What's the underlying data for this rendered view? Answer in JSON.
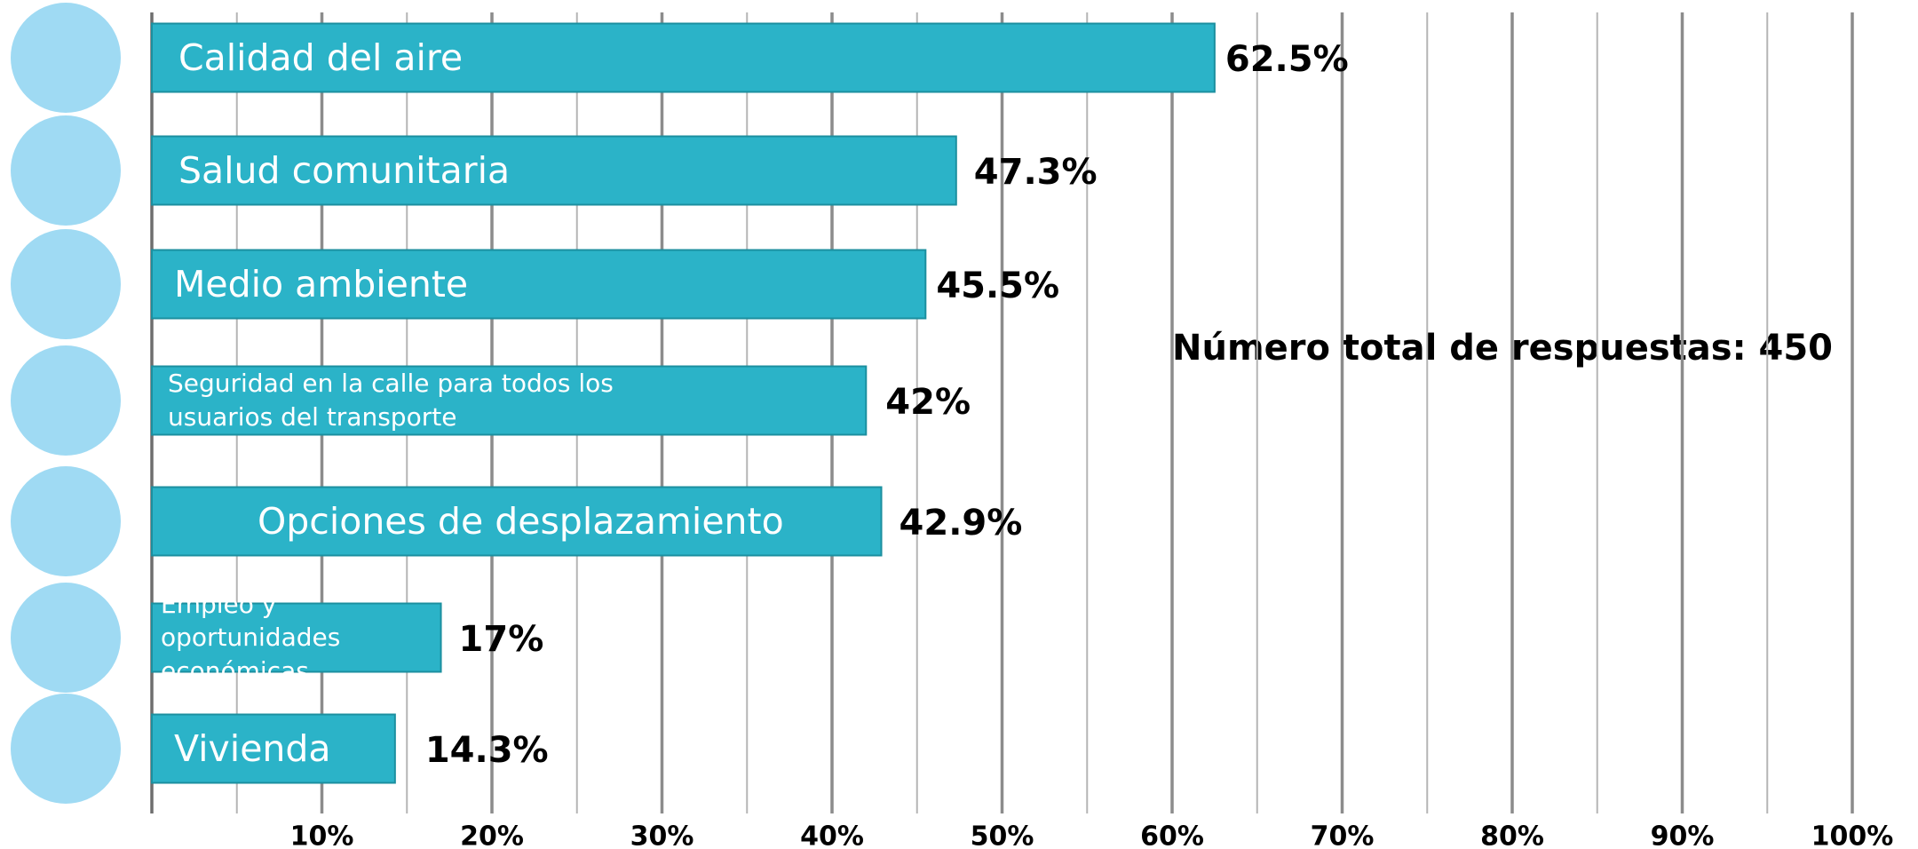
{
  "chart_data": {
    "type": "hbar",
    "categories": [
      "Calidad del aire",
      "Salud comunitaria",
      "Medio ambiente",
      "Seguridad en la calle para todos los usuarios del transporte",
      "Opciones de desplazamiento",
      "Empleo y oportunidades económicas",
      "Vivienda"
    ],
    "values": [
      62.5,
      47.3,
      45.5,
      42,
      42.9,
      17,
      14.3
    ],
    "value_labels": [
      "62.5%",
      "47.3%",
      "45.5%",
      "42%",
      "42.9%",
      "17%",
      "14.3%"
    ],
    "color": "#2bb3c8",
    "xlim": [
      0,
      100
    ],
    "xticks": [
      {
        "value": 10,
        "label": "10%"
      },
      {
        "value": 20,
        "label": "20%"
      },
      {
        "value": 30,
        "label": "30%"
      },
      {
        "value": 40,
        "label": "40%"
      },
      {
        "value": 50,
        "label": "50%"
      },
      {
        "value": 60,
        "label": "60%"
      },
      {
        "value": 70,
        "label": "70%"
      },
      {
        "value": 80,
        "label": "80%"
      },
      {
        "value": 90,
        "label": "90%"
      },
      {
        "value": 100,
        "label": "100%"
      }
    ],
    "minor_xticks": [
      5,
      15,
      25,
      35,
      45,
      55,
      65,
      75,
      85,
      95
    ],
    "grid": true,
    "annotation": "Número total de respuestas: 450"
  }
}
